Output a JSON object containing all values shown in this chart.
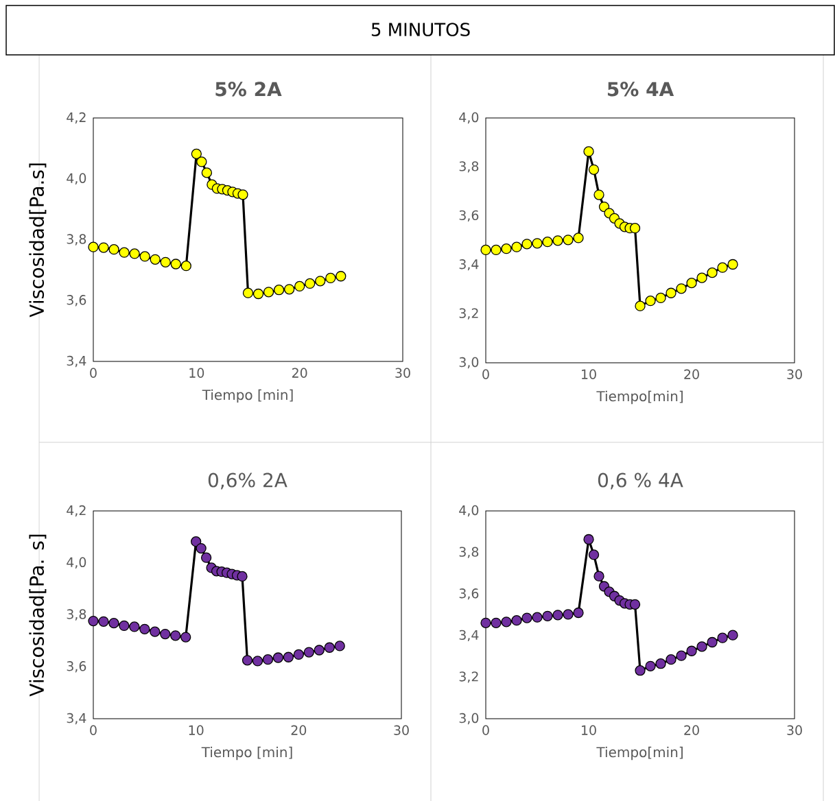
{
  "chart_data": [
    {
      "type": "other",
      "title": "5 MINUTOS"
    },
    {
      "type": "line",
      "title": "5% 2A",
      "xlabel": "Tiempo [min]",
      "ylabel": "Viscosidad[Pa.s]",
      "marker": "circle",
      "line_style": "solid",
      "x": [
        0,
        1,
        2,
        3,
        4,
        5,
        6,
        7,
        8,
        9,
        10,
        10.5,
        11,
        11.5,
        12,
        12.5,
        13,
        13.5,
        14,
        14.5,
        15,
        16,
        17,
        18,
        19,
        20,
        21,
        22,
        23,
        24
      ],
      "series": [
        {
          "color": "#ffff00",
          "values": [
            3.776,
            3.774,
            3.768,
            3.758,
            3.754,
            3.745,
            3.735,
            3.726,
            3.72,
            3.714,
            4.082,
            4.056,
            4.02,
            3.981,
            3.968,
            3.966,
            3.962,
            3.957,
            3.952,
            3.948,
            3.625,
            3.622,
            3.628,
            3.635,
            3.637,
            3.647,
            3.656,
            3.664,
            3.674,
            3.68
          ]
        }
      ],
      "xlim": [
        0,
        30
      ],
      "xticks": [
        0,
        10,
        20,
        30
      ],
      "ylim": [
        3.4,
        4.2
      ],
      "yticks": [
        {
          "value": 3.4,
          "label": "3,4"
        },
        {
          "value": 3.6,
          "label": "3,6"
        },
        {
          "value": 3.8,
          "label": "3,8"
        },
        {
          "value": 4.0,
          "label": "4,0"
        },
        {
          "value": 4.2,
          "label": "4,2"
        }
      ]
    },
    {
      "type": "line",
      "title": "5% 4A",
      "xlabel": "Tiempo[min]",
      "marker": "circle",
      "line_style": "solid",
      "x": [
        0,
        1,
        2,
        3,
        4,
        5,
        6,
        7,
        8,
        9,
        10,
        10.5,
        11,
        11.5,
        12,
        12.5,
        13,
        13.5,
        14,
        14.5,
        15,
        16,
        17,
        18,
        19,
        20,
        21,
        22,
        23,
        24
      ],
      "series": [
        {
          "color": "#ffff00",
          "values": [
            3.461,
            3.461,
            3.466,
            3.473,
            3.485,
            3.488,
            3.494,
            3.499,
            3.502,
            3.51,
            3.863,
            3.789,
            3.686,
            3.637,
            3.611,
            3.59,
            3.569,
            3.555,
            3.55,
            3.55,
            3.232,
            3.253,
            3.265,
            3.285,
            3.303,
            3.326,
            3.347,
            3.368,
            3.389,
            3.402
          ]
        }
      ],
      "xlim": [
        0,
        30
      ],
      "xticks": [
        0,
        10,
        20,
        30
      ],
      "ylim": [
        3.0,
        4.0
      ],
      "yticks": [
        {
          "value": 3.0,
          "label": "3,0"
        },
        {
          "value": 3.2,
          "label": "3,2"
        },
        {
          "value": 3.4,
          "label": "3,4"
        },
        {
          "value": 3.6,
          "label": "3,6"
        },
        {
          "value": 3.8,
          "label": "3,8"
        },
        {
          "value": 4.0,
          "label": "4,0"
        }
      ]
    },
    {
      "type": "line",
      "title": "0,6% 2A",
      "xlabel": "Tiempo [min]",
      "ylabel": "Viscosidad[Pa. s]",
      "marker": "circle",
      "line_style": "solid",
      "x": [
        0,
        1,
        2,
        3,
        4,
        5,
        6,
        7,
        8,
        9,
        10,
        10.5,
        11,
        11.5,
        12,
        12.5,
        13,
        13.5,
        14,
        14.5,
        15,
        16,
        17,
        18,
        19,
        20,
        21,
        22,
        23,
        24
      ],
      "series": [
        {
          "color": "#7030a0",
          "values": [
            3.776,
            3.774,
            3.768,
            3.758,
            3.754,
            3.745,
            3.735,
            3.726,
            3.72,
            3.714,
            4.082,
            4.056,
            4.02,
            3.981,
            3.968,
            3.966,
            3.962,
            3.957,
            3.952,
            3.948,
            3.625,
            3.622,
            3.628,
            3.635,
            3.637,
            3.647,
            3.656,
            3.664,
            3.674,
            3.68
          ]
        }
      ],
      "xlim": [
        0,
        30
      ],
      "xticks": [
        0,
        10,
        20,
        30
      ],
      "ylim": [
        3.4,
        4.2
      ],
      "yticks": [
        {
          "value": 3.4,
          "label": "3,4"
        },
        {
          "value": 3.6,
          "label": "3,6"
        },
        {
          "value": 3.8,
          "label": "3,8"
        },
        {
          "value": 4.0,
          "label": "4,0"
        },
        {
          "value": 4.2,
          "label": "4,2"
        }
      ]
    },
    {
      "type": "line",
      "title": "0,6 % 4A",
      "xlabel": "Tiempo[min]",
      "marker": "circle",
      "line_style": "solid",
      "x": [
        0,
        1,
        2,
        3,
        4,
        5,
        6,
        7,
        8,
        9,
        10,
        10.5,
        11,
        11.5,
        12,
        12.5,
        13,
        13.5,
        14,
        14.5,
        15,
        16,
        17,
        18,
        19,
        20,
        21,
        22,
        23,
        24
      ],
      "series": [
        {
          "color": "#7030a0",
          "values": [
            3.461,
            3.461,
            3.466,
            3.473,
            3.485,
            3.488,
            3.494,
            3.499,
            3.502,
            3.51,
            3.863,
            3.789,
            3.686,
            3.637,
            3.611,
            3.59,
            3.569,
            3.555,
            3.55,
            3.55,
            3.232,
            3.253,
            3.265,
            3.285,
            3.303,
            3.326,
            3.347,
            3.368,
            3.389,
            3.402
          ]
        }
      ],
      "xlim": [
        0,
        30
      ],
      "xticks": [
        0,
        10,
        20,
        30
      ],
      "ylim": [
        3.0,
        4.0
      ],
      "yticks": [
        {
          "value": 3.0,
          "label": "3,0"
        },
        {
          "value": 3.2,
          "label": "3,2"
        },
        {
          "value": 3.4,
          "label": "3,4"
        },
        {
          "value": 3.6,
          "label": "3,6"
        },
        {
          "value": 3.8,
          "label": "3,8"
        },
        {
          "value": 4.0,
          "label": "4,0"
        }
      ]
    }
  ]
}
